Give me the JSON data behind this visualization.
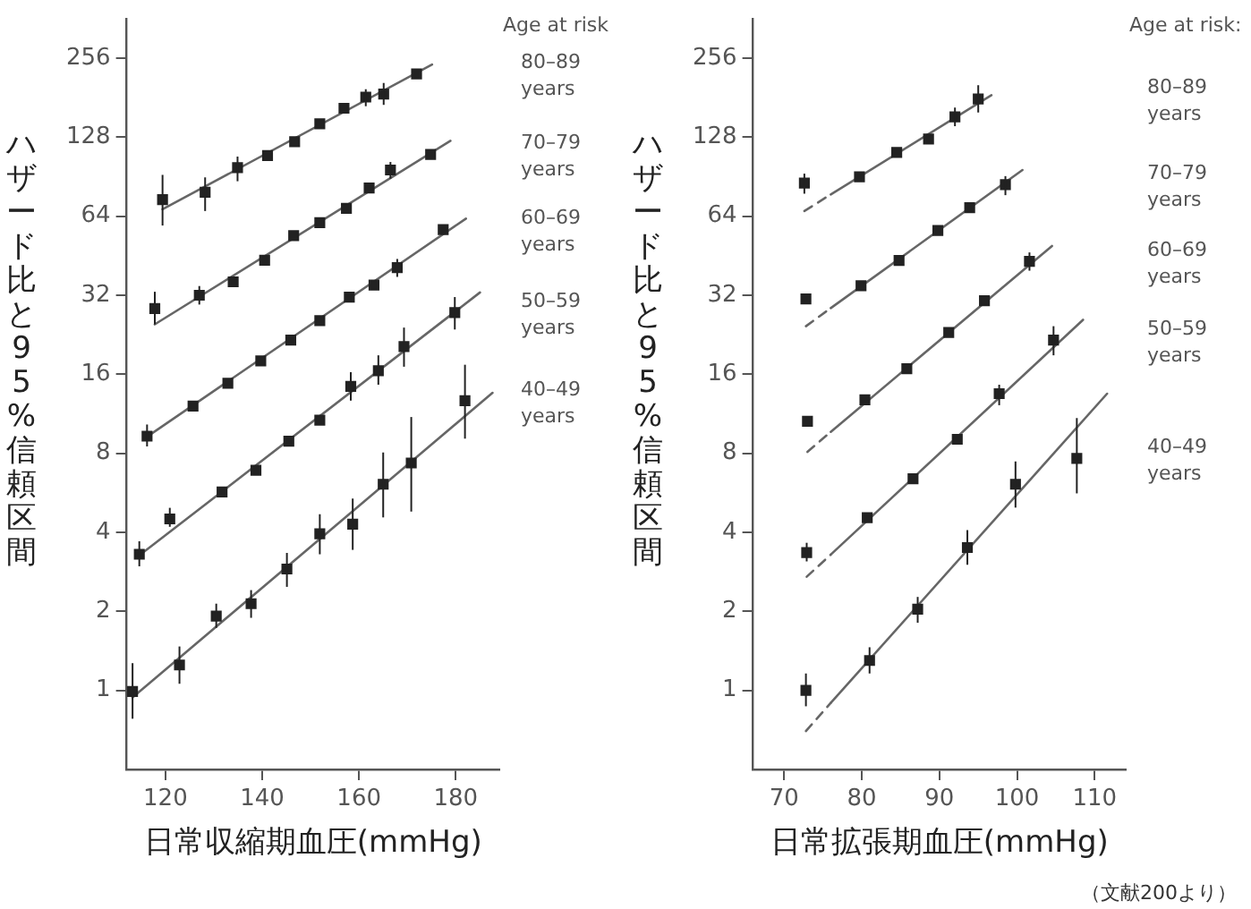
{
  "chart_data": [
    {
      "type": "scatter",
      "xlabel": "日常収縮期血圧(mmHg)",
      "ylabel": "ハザード比と95%信頼区間",
      "legend_title": "Age at risk",
      "log": "y",
      "marker": "square",
      "grid": false,
      "xlim": [
        112,
        189
      ],
      "xticks": [
        120,
        140,
        160,
        180
      ],
      "ylim": [
        0.5,
        360
      ],
      "yticks": [
        1,
        2,
        4,
        8,
        16,
        32,
        64,
        128,
        256
      ],
      "series": [
        {
          "name": "80–89 years",
          "color": "#222222",
          "x": [
            119.4,
            128.2,
            134.9,
            141.1,
            146.7,
            151.9,
            156.9,
            161.4,
            165.1,
            171.9
          ],
          "values": [
            74,
            79,
            98,
            109,
            123,
            144,
            165,
            182,
            187,
            223
          ],
          "errors": [
            [
              59,
              92
            ],
            [
              67,
              90
            ],
            [
              87,
              108
            ],
            null,
            null,
            null,
            null,
            [
              168,
              195
            ],
            [
              170,
              206
            ],
            null
          ]
        },
        {
          "name": "70–79 years",
          "color": "#222222",
          "x": [
            117.8,
            127,
            134,
            140.5,
            146.5,
            151.9,
            157.4,
            162.1,
            166.5,
            174.8
          ],
          "values": [
            28.5,
            32,
            36,
            43.5,
            54,
            60.5,
            68.6,
            82,
            96,
            110
          ],
          "errors": [
            [
              24.8,
              33
            ],
            [
              29.5,
              34.7
            ],
            null,
            null,
            null,
            null,
            null,
            null,
            [
              89,
              103
            ],
            null
          ]
        },
        {
          "name": "60–69 years",
          "color": "#222222",
          "x": [
            116.2,
            125.7,
            132.9,
            139.7,
            145.9,
            151.9,
            158,
            163.1,
            167.9,
            177.4
          ],
          "values": [
            9.3,
            12.1,
            14.8,
            18,
            21.6,
            25.6,
            31.5,
            35,
            40.8,
            56.9
          ],
          "errors": [
            [
              8.5,
              10.3
            ],
            null,
            null,
            null,
            null,
            null,
            null,
            null,
            [
              37.6,
              44
            ],
            null
          ]
        },
        {
          "name": "50–59 years",
          "color": "#222222",
          "x": [
            114.6,
            120.9,
            131.7,
            138.7,
            145.5,
            151.9,
            158.3,
            164,
            169.3,
            179.8
          ],
          "values": [
            3.3,
            4.5,
            5.7,
            6.9,
            8.9,
            10.7,
            14.4,
            16.5,
            20.4,
            27.5
          ],
          "errors": [
            [
              2.97,
              3.7
            ],
            [
              4.2,
              4.96
            ],
            null,
            null,
            null,
            null,
            [
              12.7,
              16.3
            ],
            [
              14.6,
              18.9
            ],
            [
              17.1,
              24.1
            ],
            [
              23.7,
              31.5
            ]
          ]
        },
        {
          "name": "40–49 years",
          "color": "#222222",
          "x": [
            113.2,
            122.9,
            130.5,
            137.7,
            145.1,
            151.9,
            158.7,
            165,
            170.8,
            181.9
          ],
          "values": [
            0.99,
            1.25,
            1.92,
            2.14,
            2.9,
            3.95,
            4.3,
            6.1,
            7.35,
            12.7
          ],
          "errors": [
            [
              0.78,
              1.27
            ],
            [
              1.06,
              1.47
            ],
            [
              1.73,
              2.14
            ],
            [
              1.89,
              2.41
            ],
            [
              2.48,
              3.34
            ],
            [
              3.3,
              4.69
            ],
            [
              3.43,
              5.38
            ],
            [
              4.56,
              8.06
            ],
            [
              4.8,
              11
            ],
            [
              9.1,
              17.4
            ]
          ]
        },
        {
          "type": "line",
          "marker": "none",
          "color": "#666666",
          "x": [
            119.4,
            175.1
          ],
          "values": [
            68,
            242
          ]
        },
        {
          "type": "line",
          "marker": "none",
          "color": "#666666",
          "x": [
            117.8,
            178.9
          ],
          "values": [
            24.8,
            124
          ]
        },
        {
          "type": "line",
          "marker": "none",
          "color": "#666666",
          "x": [
            116,
            182.1
          ],
          "values": [
            9.2,
            62.7
          ]
        },
        {
          "type": "line",
          "marker": "none",
          "color": "#666666",
          "x": [
            114.6,
            185
          ],
          "values": [
            3.27,
            32.8
          ]
        },
        {
          "type": "line",
          "marker": "none",
          "color": "#666666",
          "x": [
            113.2,
            187.6
          ],
          "values": [
            0.94,
            13.6
          ]
        }
      ]
    },
    {
      "type": "scatter",
      "xlabel": "日常拡張期血圧(mmHg)",
      "ylabel": "ハザード比と95%信頼区間",
      "legend_title": "Age at risk:",
      "log": "y",
      "marker": "square",
      "grid": false,
      "xlim": [
        66,
        114
      ],
      "xticks": [
        70,
        80,
        90,
        100,
        110
      ],
      "ylim": [
        0.5,
        360
      ],
      "yticks": [
        1,
        2,
        4,
        8,
        16,
        32,
        64,
        128,
        256
      ],
      "annotations": [
        "（文献200より）"
      ],
      "series": [
        {
          "name": "80–89 years",
          "color": "#222222",
          "x": [
            72.6,
            79.7,
            84.5,
            88.6,
            92.0,
            95.0
          ],
          "values": [
            85.6,
            90.5,
            112,
            126,
            153,
            179
          ],
          "errors": [
            [
              78,
              93
            ],
            null,
            null,
            null,
            [
              141,
              166
            ],
            [
              159,
              202
            ]
          ]
        },
        {
          "name": "70–79 years",
          "color": "#222222",
          "x": [
            72.8,
            79.9,
            84.8,
            89.8,
            93.9,
            98.5
          ],
          "values": [
            31,
            34.8,
            43.4,
            56.5,
            69,
            84.4
          ],
          "errors": [
            null,
            null,
            null,
            null,
            null,
            [
              77,
              91
            ]
          ]
        },
        {
          "name": "60–69 years",
          "color": "#222222",
          "x": [
            73.0,
            80.4,
            85.8,
            91.2,
            95.8,
            101.6
          ],
          "values": [
            10.6,
            12.8,
            16.8,
            23.1,
            30.5,
            43.1
          ],
          "errors": [
            null,
            null,
            null,
            null,
            null,
            [
              39.7,
              46.6
            ]
          ]
        },
        {
          "name": "50–59 years",
          "color": "#222222",
          "x": [
            72.9,
            80.7,
            86.6,
            92.3,
            97.7,
            104.7
          ],
          "values": [
            3.35,
            4.55,
            6.4,
            9.05,
            13.5,
            21.6
          ],
          "errors": [
            [
              3.1,
              3.65
            ],
            null,
            null,
            null,
            [
              12.2,
              14.6
            ],
            [
              18.9,
              24.4
            ]
          ]
        },
        {
          "name": "40–49 years",
          "color": "#222222",
          "x": [
            72.8,
            81.0,
            87.2,
            93.6,
            99.8,
            107.7
          ],
          "values": [
            1.0,
            1.3,
            2.04,
            3.5,
            6.1,
            7.65
          ],
          "errors": [
            [
              0.87,
              1.16
            ],
            [
              1.16,
              1.46
            ],
            [
              1.81,
              2.27
            ],
            [
              3.01,
              4.08
            ],
            [
              4.97,
              7.45
            ],
            [
              5.63,
              10.9
            ]
          ]
        },
        {
          "type": "line",
          "marker": "none",
          "color": "#666666",
          "x": [
            76,
            96.7
          ],
          "values": [
            77.5,
            185
          ]
        },
        {
          "type": "line",
          "marker": "none",
          "color": "#666666",
          "x": [
            76,
            100.7
          ],
          "values": [
            28.6,
            96
          ]
        },
        {
          "type": "line",
          "marker": "none",
          "color": "#666666",
          "x": [
            76,
            104.5
          ],
          "values": [
            9.66,
            49.3
          ]
        },
        {
          "type": "line",
          "marker": "none",
          "color": "#666666",
          "x": [
            76,
            108.5
          ],
          "values": [
            3.29,
            25.8
          ]
        },
        {
          "type": "line",
          "marker": "none",
          "color": "#666666",
          "x": [
            76,
            111.6
          ],
          "values": [
            0.896,
            13.5
          ]
        },
        {
          "type": "line",
          "marker": "none",
          "line_style": "dashed",
          "color": "#666666",
          "x": [
            72.6,
            76
          ],
          "values": [
            67,
            77.5
          ]
        },
        {
          "type": "line",
          "marker": "none",
          "line_style": "dashed",
          "color": "#666666",
          "x": [
            72.8,
            76
          ],
          "values": [
            24.4,
            28.6
          ]
        },
        {
          "type": "line",
          "marker": "none",
          "line_style": "dashed",
          "color": "#666666",
          "x": [
            73,
            76
          ],
          "values": [
            8.1,
            9.66
          ]
        },
        {
          "type": "line",
          "marker": "none",
          "line_style": "dashed",
          "color": "#666666",
          "x": [
            72.9,
            76
          ],
          "values": [
            2.71,
            3.29
          ]
        },
        {
          "type": "line",
          "marker": "none",
          "line_style": "dashed",
          "color": "#666666",
          "x": [
            72.8,
            76
          ],
          "values": [
            0.7,
            0.896
          ]
        }
      ]
    }
  ]
}
